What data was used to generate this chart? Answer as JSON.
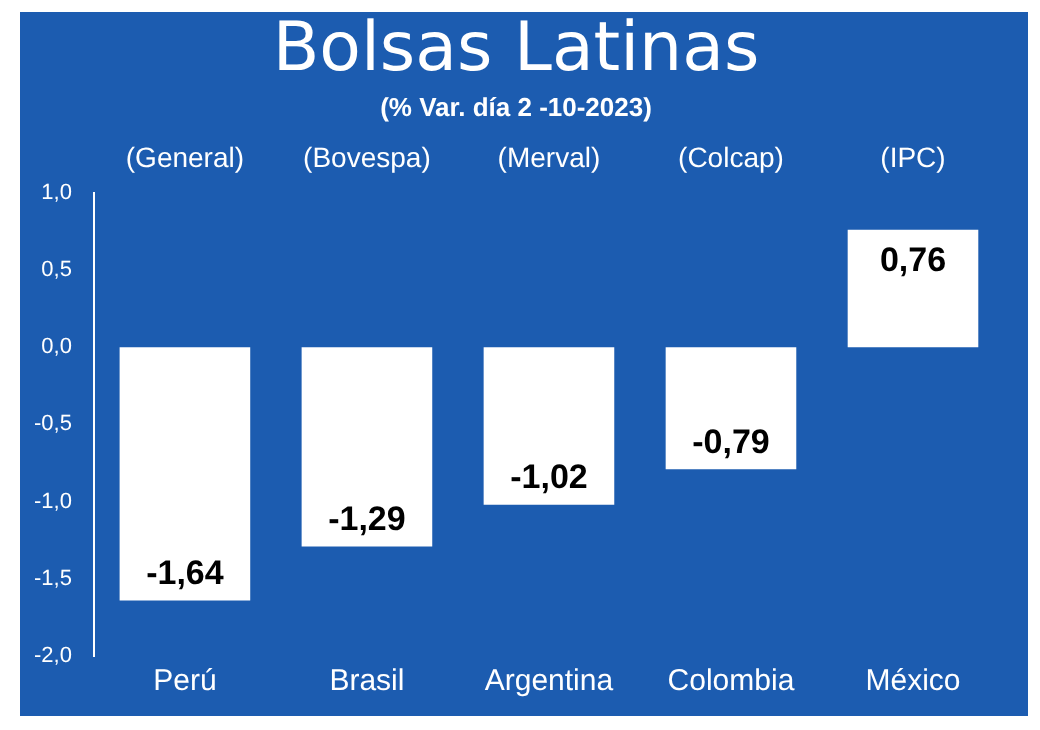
{
  "chart_data": {
    "type": "bar",
    "title": "Bolsas Latinas",
    "subtitle": "(% Var. día 2 -10-2023)",
    "categories": [
      "Perú",
      "Brasil",
      "Argentina",
      "Colombia",
      "México"
    ],
    "values": [
      -1.64,
      -1.29,
      -1.02,
      -0.79,
      0.76
    ],
    "value_labels": [
      "-1,64",
      "-1,29",
      "-1,02",
      "-0,79",
      "0,76"
    ],
    "color": "#ffffff",
    "annotations": [
      "(General)",
      "(Bovespa)",
      "(Merval)",
      "(Colcap)",
      "(IPC)"
    ],
    "ylim": [
      -2,
      1
    ],
    "yticks": [
      {
        "value": -2,
        "label": "-2,0"
      },
      {
        "value": -1.5,
        "label": "-1,5"
      },
      {
        "value": -1,
        "label": "-1,0"
      },
      {
        "value": -0.5,
        "label": "-0,5"
      },
      {
        "value": 0,
        "label": "0,0"
      },
      {
        "value": 0.5,
        "label": "0,5"
      },
      {
        "value": 1,
        "label": "1,0"
      }
    ],
    "grid": false,
    "legend": false
  }
}
